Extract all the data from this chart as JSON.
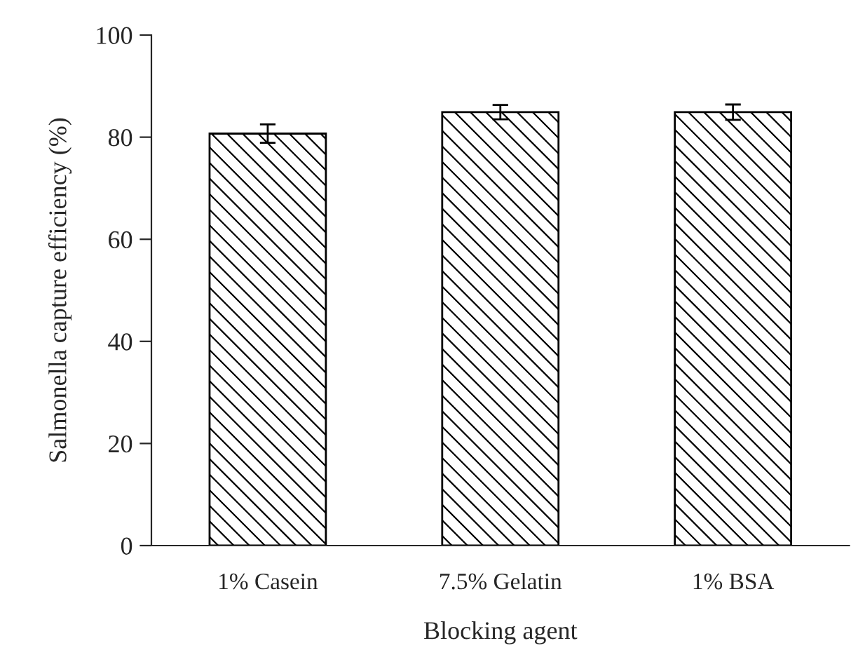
{
  "chart_data": {
    "type": "bar",
    "xlabel": "Blocking agent",
    "ylabel": "Salmonella capture efficiency (%)",
    "categories": [
      "1% Casein",
      "7.5% Gelatin",
      "1% BSA"
    ],
    "values": [
      80.7,
      84.9,
      84.9
    ],
    "errors": [
      1.8,
      1.4,
      1.5
    ],
    "color": "#000000",
    "ylim": [
      0,
      100
    ],
    "yticks": [
      0,
      20,
      40,
      60,
      80,
      100
    ],
    "grid": false,
    "legend": false
  }
}
